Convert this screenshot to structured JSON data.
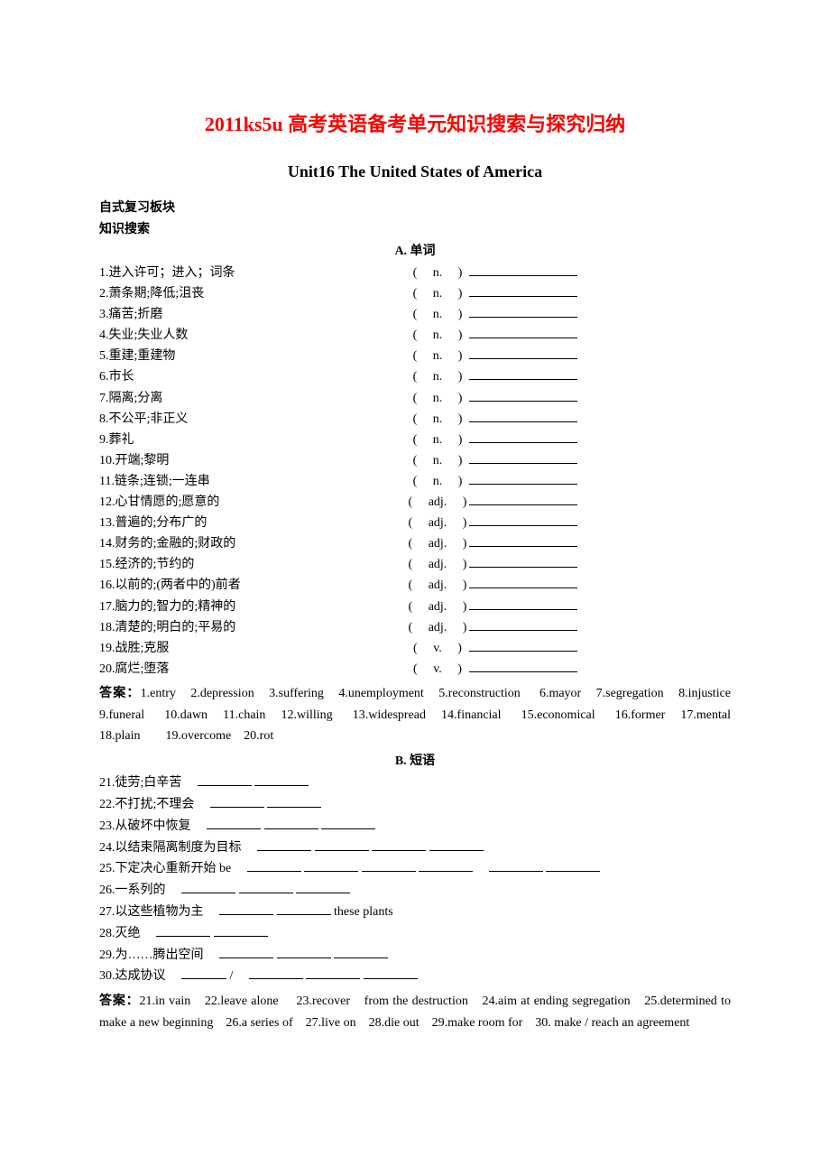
{
  "title": "2011ks5u 高考英语备考单元知识搜索与探究归纳",
  "subtitle": "Unit16 The United States of America",
  "section_fs": "自式复习板块",
  "section_zs": "知识搜索",
  "sectionA_head": "A. 单词",
  "words": [
    {
      "n": "1.进入许可；进入；词条",
      "p": "( 　n. 　)"
    },
    {
      "n": "2.萧条期;降低;沮丧",
      "p": "( 　n. 　)"
    },
    {
      "n": "3.痛苦;折磨",
      "p": "( 　n. 　)"
    },
    {
      "n": "4.失业;失业人数",
      "p": "( 　n. 　)"
    },
    {
      "n": "5.重建;重建物",
      "p": "( 　n. 　)"
    },
    {
      "n": "6.市长",
      "p": "( 　n. 　)"
    },
    {
      "n": "7.隔离;分离",
      "p": "( 　n. 　)"
    },
    {
      "n": "8.不公平;非正义",
      "p": "( 　n. 　)"
    },
    {
      "n": "9.葬礼",
      "p": "( 　n. 　)"
    },
    {
      "n": "10.开端;黎明",
      "p": "( 　n. 　)"
    },
    {
      "n": "11.链条;连锁;一连串",
      "p": "( 　n. 　)"
    },
    {
      "n": "12.心甘情愿的;愿意的",
      "p": "( 　adj. 　)"
    },
    {
      "n": "13.普遍的;分布广的",
      "p": "( 　adj. 　)"
    },
    {
      "n": "14.财务的;金融的;财政的",
      "p": "( 　adj. 　)"
    },
    {
      "n": "15.经济的;节约的",
      "p": "( 　adj. 　)"
    },
    {
      "n": "16.以前的;(两者中的)前者",
      "p": "( 　adj. 　)"
    },
    {
      "n": "17.脑力的;智力的;精神的",
      "p": "( 　adj. 　)"
    },
    {
      "n": "18.清楚的;明白的;平易的",
      "p": "( 　adj. 　)"
    },
    {
      "n": "19.战胜;克服",
      "p": "( 　v. 　)"
    },
    {
      "n": "20.腐烂;堕落",
      "p": "( 　v. 　)"
    }
  ],
  "answersA_label": "答案：",
  "answersA": "1.entry　2.depression　3.suffering　4.unemployment　5.reconstruction　 6.mayor　7.segregation　8.injustice　 9.funeral　 10.dawn　11.chain　12.willing　 13.widespread　14.financial　 15.economical　 16.former　17.mental　18.plain　　19.overcome　20.rot",
  "sectionB_head": "B. 短语",
  "phrases": {
    "p21_cn": "21.徒劳;白辛苦",
    "p22_cn": "22.不打扰;不理会",
    "p23_cn": "23.从破坏中恢复",
    "p24_cn": "24.以结束隔离制度为目标",
    "p25_cn": "25.下定决心重新开始 be",
    "p26_cn": "26.一系列的",
    "p27_cn": "27.以这些植物为主",
    "p27_tail": "these plants",
    "p28_cn": "28.灭绝",
    "p29_cn": "29.为……腾出空间",
    "p30_cn": "30.达成协议"
  },
  "answersB_label": "答案：",
  "answersB": "21.in vain　22.leave alone　 23.recover　from the destruction　24.aim at ending segregation　25.determined to make a new beginning　26.a series of　27.live on　28.die out　29.make room for　30. make / reach an agreement"
}
